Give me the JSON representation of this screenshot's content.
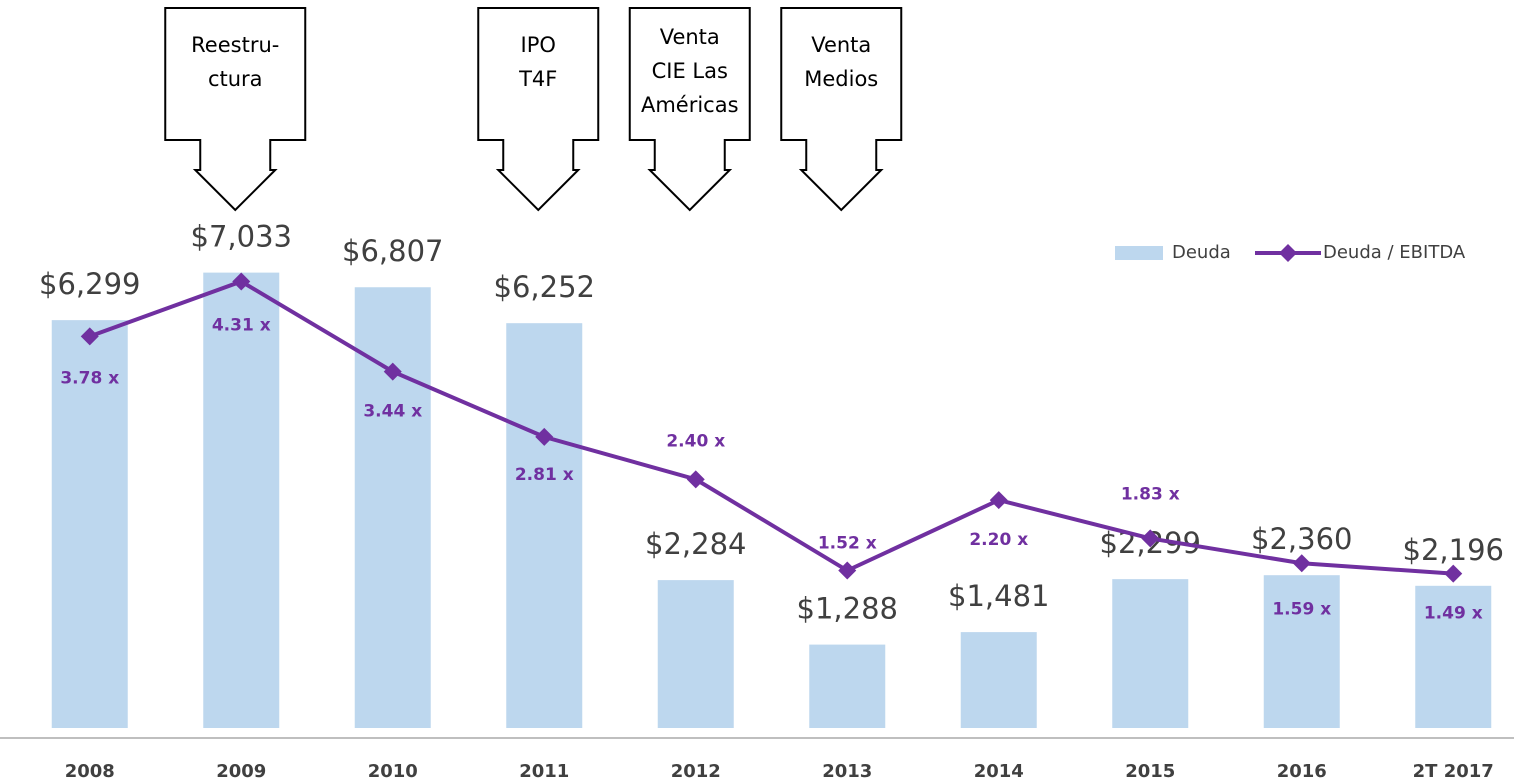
{
  "chart_data": {
    "type": "bar-line",
    "categories": [
      "2008",
      "2009",
      "2010",
      "2011",
      "2012",
      "2013",
      "2014",
      "2015",
      "2016",
      "2T 2017"
    ],
    "series": [
      {
        "name": "Deuda",
        "type": "bar",
        "color": "#bdd7ee",
        "values": [
          6299,
          7033,
          6807,
          6252,
          2284,
          1288,
          1481,
          2299,
          2360,
          2196
        ],
        "value_labels": [
          "$6,299",
          "$7,033",
          "$6,807",
          "$6,252",
          "$2,284",
          "$1,288",
          "$1,481",
          "$2,299",
          "$2,360",
          "$2,196"
        ]
      },
      {
        "name": "Deuda / EBITDA",
        "type": "line",
        "axis": "y2",
        "color": "#7030a0",
        "values": [
          3.78,
          4.31,
          3.44,
          2.81,
          2.4,
          1.52,
          2.2,
          1.83,
          1.59,
          1.49
        ],
        "value_labels": [
          "3.78 x",
          "4.31 x",
          "3.44 x",
          "2.81 x",
          "2.40 x",
          "1.52 x",
          "2.20 x",
          "1.83 x",
          "1.59 x",
          "1.49 x"
        ]
      }
    ],
    "ylim": [
      0,
      8000
    ],
    "y2lim": [
      0,
      5
    ],
    "grid": false,
    "legend": "top-right",
    "annotations": [
      {
        "lines": [
          "Reestru-",
          "ctura"
        ],
        "at": "2009"
      },
      {
        "lines": [
          "IPO",
          "T4F"
        ],
        "at": "2011"
      },
      {
        "lines": [
          "Venta",
          "CIE Las",
          "Américas"
        ],
        "at": "2012"
      },
      {
        "lines": [
          "Venta",
          "Medios"
        ],
        "at": "2013"
      }
    ]
  }
}
